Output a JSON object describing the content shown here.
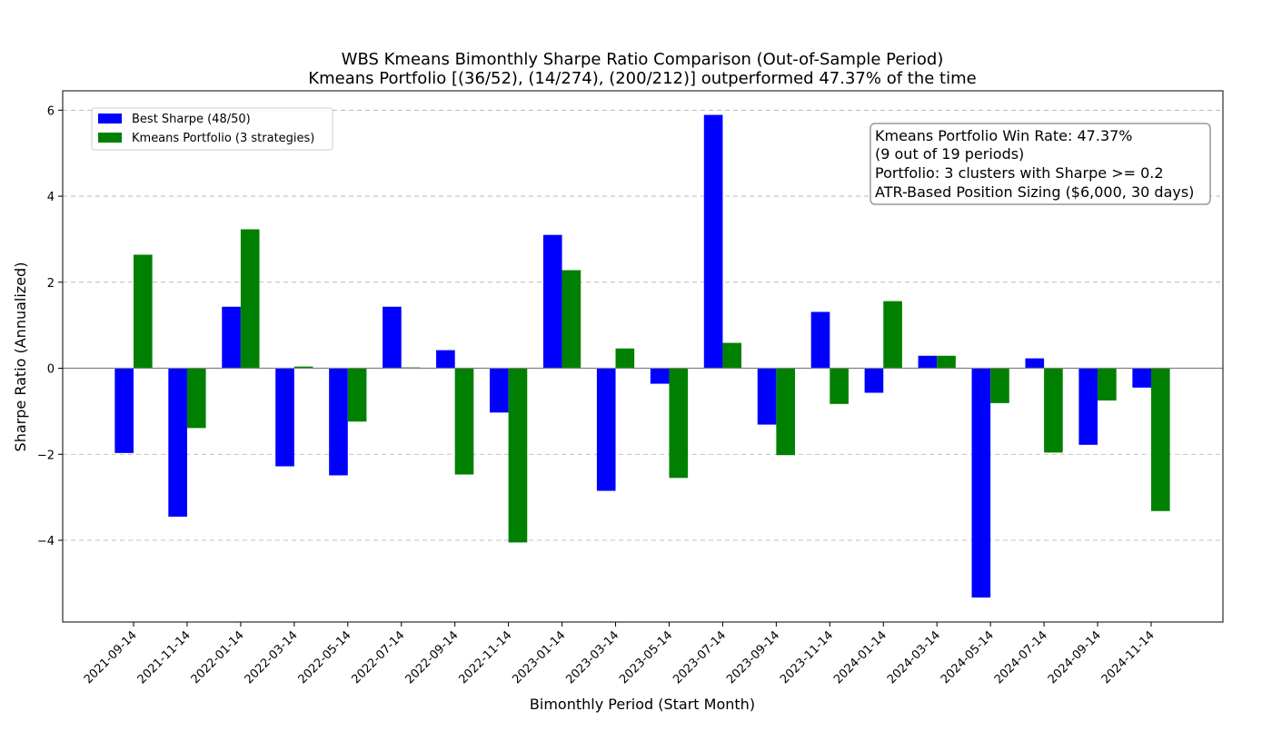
{
  "chart_data": {
    "type": "bar",
    "title": "WBS Kmeans Bimonthly Sharpe Ratio Comparison (Out-of-Sample Period)",
    "subtitle": "Kmeans Portfolio [(36/52), (14/274), (200/212)] outperformed 47.37% of the time",
    "xlabel": "Bimonthly Period (Start Month)",
    "ylabel": "Sharpe Ratio (Annualized)",
    "ylim": [
      -5.9,
      6.45
    ],
    "yticks": [
      -4,
      -2,
      0,
      2,
      4,
      6
    ],
    "ytick_labels": [
      "−4",
      "−2",
      "0",
      "2",
      "4",
      "6"
    ],
    "grid": "y-dashed",
    "legend_position": "top-left",
    "categories": [
      "2021-09-14",
      "2021-11-14",
      "2022-01-14",
      "2022-03-14",
      "2022-05-14",
      "2022-07-14",
      "2022-09-14",
      "2022-11-14",
      "2023-01-14",
      "2023-03-14",
      "2023-05-14",
      "2023-07-14",
      "2023-09-14",
      "2023-11-14",
      "2024-01-14",
      "2024-03-14",
      "2024-05-14",
      "2024-07-14",
      "2024-09-14",
      "2024-11-14"
    ],
    "series": [
      {
        "name": "Best Sharpe (48/50)",
        "color": "#0000ff",
        "values": [
          -1.97,
          -3.45,
          1.43,
          -2.28,
          -2.49,
          1.43,
          0.42,
          -1.03,
          3.1,
          -2.85,
          -0.36,
          5.89,
          -1.31,
          1.31,
          -0.57,
          0.29,
          -5.33,
          0.23,
          -1.78,
          -0.45
        ]
      },
      {
        "name": "Kmeans Portfolio (3 strategies)",
        "color": "#008000",
        "values": [
          2.64,
          -1.39,
          3.23,
          0.04,
          -1.24,
          0.02,
          -2.47,
          -4.05,
          2.28,
          0.46,
          -2.55,
          0.59,
          -2.02,
          -0.83,
          1.56,
          0.29,
          -0.81,
          -1.96,
          -0.75,
          -3.32
        ]
      }
    ],
    "annotation": [
      "Kmeans Portfolio Win Rate: 47.37%",
      "(9 out of 19 periods)",
      "Portfolio: 3 clusters with Sharpe >= 0.2",
      "ATR-Based Position Sizing ($6,000, 30 days)"
    ]
  }
}
